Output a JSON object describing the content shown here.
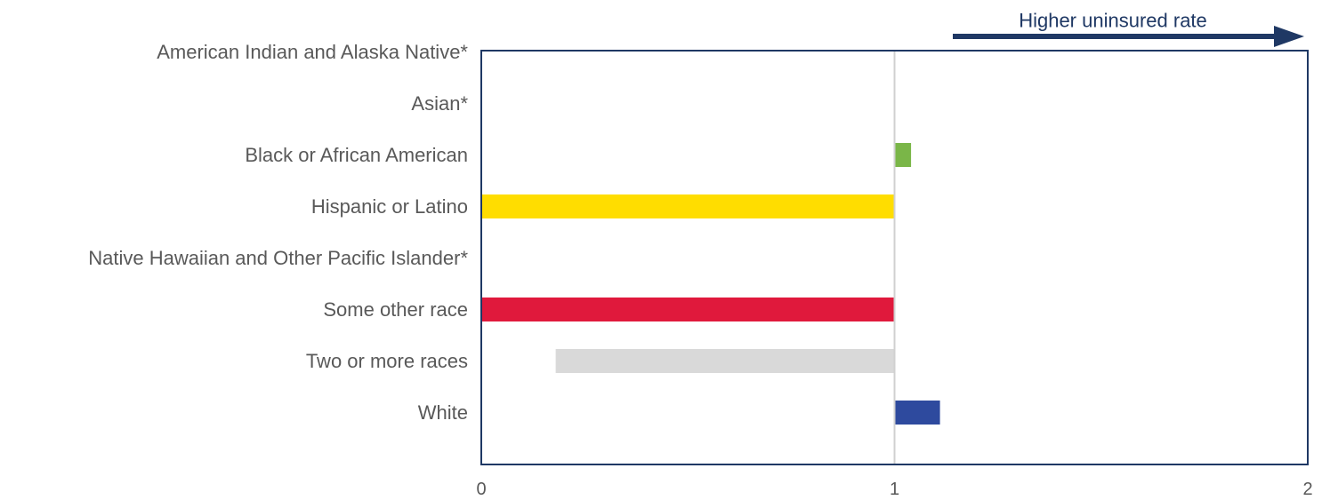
{
  "chart_data": {
    "type": "bar",
    "orientation": "horizontal",
    "baseline": 1,
    "categories": [
      "American Indian and Alaska Native*",
      "Asian*",
      "Black or African American",
      "Hispanic or Latino",
      "Native Hawaiian and Other Pacific Islander*",
      "Some other race",
      "Two or more races",
      "White"
    ],
    "values": [
      null,
      null,
      1.04,
      0.0,
      null,
      0.0,
      0.18,
      1.11
    ],
    "colors": [
      null,
      null,
      "#7ab648",
      "#ffdd00",
      null,
      "#e0193c",
      "#d9d9d9",
      "#2e4a9e"
    ],
    "xlim": [
      0,
      2
    ],
    "xticks": [
      "0",
      "1",
      "2"
    ],
    "grid": false,
    "annotation": {
      "text": "Higher uninsured rate",
      "color": "#1f3864"
    },
    "frame_color": "#1f3864",
    "reference_line_color": "#d0d0d0"
  }
}
